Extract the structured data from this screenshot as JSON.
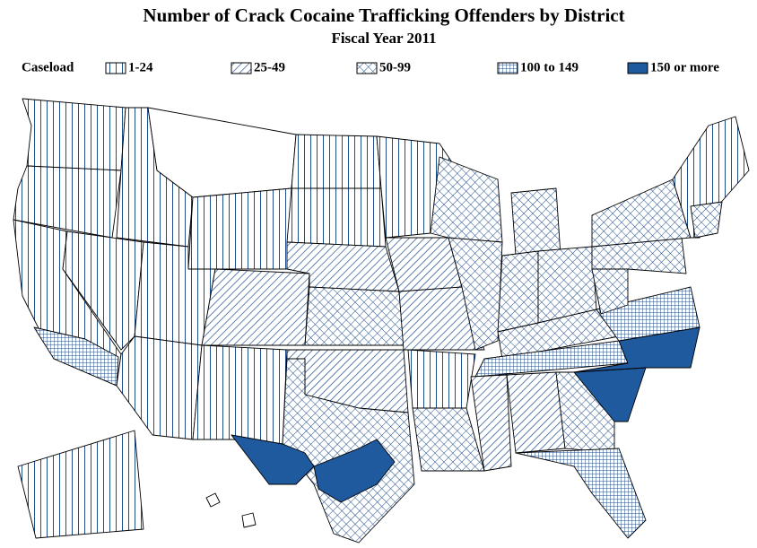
{
  "header": {
    "title": "Number of Crack Cocaine Trafficking Offenders by District",
    "subtitle": "Fiscal Year 2011"
  },
  "legend": {
    "label": "Caseload",
    "items": [
      {
        "label": "1-24"
      },
      {
        "label": "25-49"
      },
      {
        "label": "50-99"
      },
      {
        "label": "100 to 149"
      },
      {
        "label": "150 or more"
      }
    ]
  }
}
